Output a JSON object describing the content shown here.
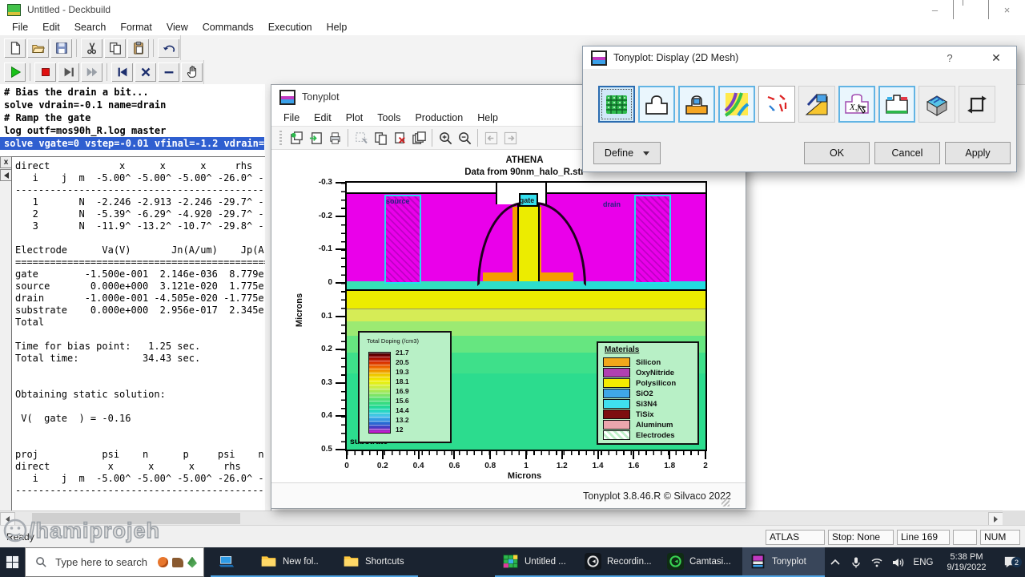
{
  "app": {
    "title": "Untitled - Deckbuild",
    "menu": [
      "File",
      "Edit",
      "Search",
      "Format",
      "View",
      "Commands",
      "Execution",
      "Help"
    ],
    "window_controls": {
      "minimize": "–",
      "close": "×"
    },
    "toolbar_main_groups": [
      [
        "new-file",
        "open-file",
        "save-file"
      ],
      [
        "cut",
        "copy",
        "paste"
      ],
      [
        "undo"
      ]
    ],
    "toolbar_run_groups": [
      [
        "run"
      ],
      [
        "stop",
        "step",
        "run-to"
      ],
      [
        "go-first",
        "kill",
        "pause-line",
        "grab"
      ]
    ],
    "editor": {
      "lines": [
        "# Bias the drain a bit...",
        "solve vdrain=-0.1 name=drain",
        "# Ramp the gate",
        "log outf=mos90h_R.log master",
        "solve vgate=0 vstep=-0.01 vfinal=-1.2 vdrain=-0"
      ],
      "highlighted_line": 4
    },
    "output_pane": {
      "gutter_close": "x"
    },
    "output_lines": [
      "direct            x      x      x     rhs    rh",
      "   i    j  m  -5.00^ -5.00^ -5.00^ -26.0^ -17",
      "----------------------------------------------",
      "   1       N  -2.246 -2.913 -2.246 -29.7^ -10",
      "   2       N  -5.39^ -6.29^ -4.920 -29.7^ -16",
      "   3       N  -11.9^ -13.2^ -10.7^ -29.8^ -17",
      "",
      "Electrode      Va(V)       Jn(A/um)    Jp(A",
      "==============================================",
      "gate        -1.500e-001  2.146e-036  8.779e",
      "source       0.000e+000  3.121e-020  1.775e",
      "drain       -1.000e-001 -4.505e-020 -1.775e",
      "substrate    0.000e+000  2.956e-017  2.345e",
      "Total",
      "",
      "Time for bias point:   1.25 sec.",
      "Total time:           34.43 sec.",
      "",
      "",
      "Obtaining static solution:",
      "",
      " V(  gate  ) = -0.16",
      "",
      "",
      "proj           psi    n      p     psi    n",
      "direct          x      x      x     rhs    rh",
      "   i    j  m  -5.00^ -5.00^ -5.00^ -26.0^ -17",
      "----------------------------------------------"
    ],
    "statusbar": {
      "ready": "Ready",
      "fields": [
        "ATLAS",
        "Stop: None",
        "Line 169",
        "",
        "NUM"
      ]
    }
  },
  "tonyplot": {
    "title": "Tonyplot",
    "menu": [
      "File",
      "Edit",
      "Plot",
      "Tools",
      "Production",
      "Help"
    ],
    "toolbar_groups": [
      [
        "overlay",
        "import",
        "print"
      ],
      [
        "select-region",
        "copy-plot",
        "delete-plot",
        "duplicate-plot"
      ],
      [
        "zoom-in",
        "zoom-out"
      ],
      [
        "history-back",
        "history-forward"
      ]
    ],
    "statusbar": "Tonyplot 3.8.46.R © Silvaco 2022"
  },
  "dialog": {
    "title": "Tonyplot: Display (2D Mesh)",
    "help_label": "?",
    "close_label": "✕",
    "icon_buttons": [
      {
        "name": "mesh",
        "state": "selected"
      },
      {
        "name": "regions",
        "state": "on"
      },
      {
        "name": "materials",
        "state": "on"
      },
      {
        "name": "contours",
        "state": "on"
      },
      {
        "name": "vectors",
        "state": "off"
      },
      {
        "name": "flowlines",
        "state": "flat"
      },
      {
        "name": "labels",
        "state": "on"
      },
      {
        "name": "junctions",
        "state": "on"
      },
      {
        "name": "surface-3d",
        "state": "flat"
      },
      {
        "name": "cycle",
        "state": "flat"
      }
    ],
    "define_label": "Define",
    "ok_label": "OK",
    "cancel_label": "Cancel",
    "apply_label": "Apply"
  },
  "chart_data": {
    "type": "heatmap",
    "title": "ATHENA",
    "subtitle": "Data from 90nm_halo_R.str",
    "xlabel": "Microns",
    "ylabel": "Microns",
    "xlim": [
      0,
      2
    ],
    "ylim_top_to_bottom": [
      -0.3,
      0.5
    ],
    "x_ticks": [
      "0",
      "0.2",
      "0.4",
      "0.6",
      "0.8",
      "1",
      "1.2",
      "1.4",
      "1.6",
      "1.8",
      "2"
    ],
    "y_ticks": [
      "-0.3",
      "-0.2",
      "-0.1",
      "0",
      "0.1",
      "0.2",
      "0.3",
      "0.4",
      "0.5"
    ],
    "region_labels": {
      "source": "source",
      "gate": "gate",
      "drain": "drain",
      "substrate": "substrate"
    },
    "doping_legend": {
      "title": "Total Doping (/cm3)",
      "tick_labels": [
        "21.7",
        "20.5",
        "19.3",
        "18.1",
        "16.9",
        "15.6",
        "14.4",
        "13.2",
        "12"
      ]
    },
    "materials_legend": {
      "title": "Materials",
      "items": [
        {
          "name": "Silicon",
          "color": "#f2a71b"
        },
        {
          "name": "OxyNitride",
          "color": "#b040b0"
        },
        {
          "name": "Polysilicon",
          "color": "#f4ec00"
        },
        {
          "name": "SiO2",
          "color": "#3fa7e8"
        },
        {
          "name": "Si3N4",
          "color": "#3fe0ef"
        },
        {
          "name": "TiSix",
          "color": "#7e0e10"
        },
        {
          "name": "Aluminum",
          "color": "#eba6ad"
        },
        {
          "name": "Electrodes",
          "color": "#bfeec9",
          "hatch": true
        }
      ]
    }
  },
  "taskbar": {
    "search_placeholder": "Type here to search",
    "buttons": [
      {
        "label": "",
        "icon": "pc",
        "iconic": true
      },
      {
        "label": "New fol..",
        "icon": "folder"
      },
      {
        "label": "Shortcuts",
        "icon": "folder"
      },
      {
        "label": "Untitled ...",
        "icon": "deckbuild",
        "gap": true
      },
      {
        "label": "Recordin...",
        "icon": "camtasia-dark"
      },
      {
        "label": "Camtasi...",
        "icon": "camtasia"
      },
      {
        "label": "Tonyplot",
        "icon": "tonyplot",
        "active": true
      }
    ],
    "tray": {
      "language": "ENG",
      "time": "5:38 PM",
      "date": "9/19/2022",
      "notification_count": "2"
    }
  },
  "watermark": {
    "handle": "/hamiprojeh"
  }
}
